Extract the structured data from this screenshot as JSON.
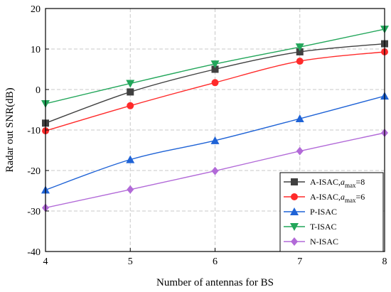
{
  "chart_data": {
    "type": "line",
    "xlabel": "Number of antennas for BS",
    "ylabel": "Radar out SNR(dB)",
    "x": [
      4,
      5,
      6,
      7,
      8
    ],
    "xlim": [
      4,
      8
    ],
    "ylim": [
      -40,
      20
    ],
    "x_ticks": [
      4,
      5,
      6,
      7,
      8
    ],
    "y_ticks": [
      -40,
      -30,
      -20,
      -10,
      0,
      10,
      20
    ],
    "grid": true,
    "legend_position": "bottom-right",
    "series": [
      {
        "name": "A-ISAC,",
        "name_math": "a",
        "name_sub": "max",
        "name_suffix": "=8",
        "color": "#404040",
        "marker": "square",
        "values": [
          -8.3,
          -0.6,
          5.0,
          9.3,
          11.3
        ]
      },
      {
        "name": "A-ISAC,",
        "name_math": "a",
        "name_sub": "max",
        "name_suffix": "=6",
        "color": "#ff2a2a",
        "marker": "circle",
        "values": [
          -10.2,
          -4.0,
          1.7,
          7.0,
          9.3
        ]
      },
      {
        "name": "P-ISAC",
        "color": "#1f63d6",
        "marker": "triangle-up",
        "values": [
          -24.8,
          -17.3,
          -12.6,
          -7.2,
          -1.6
        ]
      },
      {
        "name": "T-ISAC",
        "color": "#22a65a",
        "marker": "triangle-down",
        "values": [
          -3.5,
          1.5,
          6.3,
          10.5,
          14.9
        ]
      },
      {
        "name": "N-ISAC",
        "color": "#b26ad8",
        "marker": "diamond",
        "values": [
          -29.2,
          -24.7,
          -20.1,
          -15.2,
          -10.7
        ]
      }
    ]
  }
}
